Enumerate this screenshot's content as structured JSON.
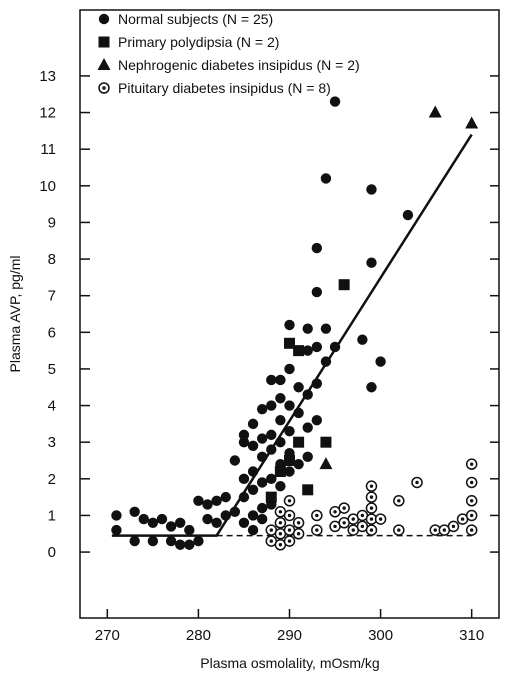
{
  "chart_data": {
    "type": "scatter",
    "title": "",
    "xlabel": "Plasma osmolality, mOsm/kg",
    "ylabel": "Plasma AVP, pg/ml",
    "xlim": [
      267,
      313
    ],
    "ylim": [
      -1.8,
      14.8
    ],
    "xticks": [
      270,
      280,
      290,
      300,
      310
    ],
    "yticks": [
      0,
      1,
      2,
      3,
      4,
      5,
      6,
      7,
      8,
      9,
      10,
      11,
      12,
      13
    ],
    "grid": false,
    "legend_position": "top-left",
    "series": [
      {
        "name": "Normal subjects (N = 25)",
        "marker": "circle",
        "points": [
          [
            271,
            1.0
          ],
          [
            271,
            0.6
          ],
          [
            273,
            1.1
          ],
          [
            273,
            0.3
          ],
          [
            274,
            0.9
          ],
          [
            275,
            0.8
          ],
          [
            275,
            0.3
          ],
          [
            276,
            0.9
          ],
          [
            277,
            0.7
          ],
          [
            277,
            0.3
          ],
          [
            278,
            0.8
          ],
          [
            278,
            0.2
          ],
          [
            279,
            0.6
          ],
          [
            279,
            0.2
          ],
          [
            280,
            0.3
          ],
          [
            280,
            1.4
          ],
          [
            281,
            1.3
          ],
          [
            281,
            0.9
          ],
          [
            282,
            1.4
          ],
          [
            282,
            0.8
          ],
          [
            283,
            1.5
          ],
          [
            283,
            1.0
          ],
          [
            284,
            2.5
          ],
          [
            284,
            1.1
          ],
          [
            285,
            3.2
          ],
          [
            285,
            3.0
          ],
          [
            285,
            2.0
          ],
          [
            285,
            1.5
          ],
          [
            285,
            0.8
          ],
          [
            286,
            3.5
          ],
          [
            286,
            2.9
          ],
          [
            286,
            2.2
          ],
          [
            286,
            1.7
          ],
          [
            286,
            1.0
          ],
          [
            286,
            0.6
          ],
          [
            287,
            3.9
          ],
          [
            287,
            3.1
          ],
          [
            287,
            2.6
          ],
          [
            287,
            1.9
          ],
          [
            287,
            1.2
          ],
          [
            287,
            0.9
          ],
          [
            288,
            4.7
          ],
          [
            288,
            4.0
          ],
          [
            288,
            3.2
          ],
          [
            288,
            2.8
          ],
          [
            288,
            2.0
          ],
          [
            288,
            1.3
          ],
          [
            289,
            4.7
          ],
          [
            289,
            4.2
          ],
          [
            289,
            3.6
          ],
          [
            289,
            3.0
          ],
          [
            289,
            2.4
          ],
          [
            289,
            1.8
          ],
          [
            290,
            6.2
          ],
          [
            290,
            5.0
          ],
          [
            290,
            4.0
          ],
          [
            290,
            3.3
          ],
          [
            290,
            2.7
          ],
          [
            290,
            2.2
          ],
          [
            291,
            5.5
          ],
          [
            291,
            4.5
          ],
          [
            291,
            3.8
          ],
          [
            291,
            3.0
          ],
          [
            291,
            2.4
          ],
          [
            292,
            6.1
          ],
          [
            292,
            5.5
          ],
          [
            292,
            4.3
          ],
          [
            292,
            3.4
          ],
          [
            292,
            2.6
          ],
          [
            293,
            8.3
          ],
          [
            293,
            7.1
          ],
          [
            293,
            5.6
          ],
          [
            293,
            4.6
          ],
          [
            293,
            3.6
          ],
          [
            294,
            10.2
          ],
          [
            294,
            6.1
          ],
          [
            294,
            5.2
          ],
          [
            295,
            12.3
          ],
          [
            295,
            5.6
          ],
          [
            298,
            5.8
          ],
          [
            299,
            9.9
          ],
          [
            299,
            7.9
          ],
          [
            299,
            4.5
          ],
          [
            300,
            5.2
          ],
          [
            303,
            9.2
          ]
        ]
      },
      {
        "name": "Primary polydipsia (N = 2)",
        "marker": "square",
        "points": [
          [
            288,
            1.5
          ],
          [
            289,
            2.2
          ],
          [
            290,
            5.7
          ],
          [
            290,
            2.5
          ],
          [
            291,
            5.5
          ],
          [
            291,
            3.0
          ],
          [
            292,
            1.7
          ],
          [
            294,
            3.0
          ],
          [
            296,
            7.3
          ]
        ]
      },
      {
        "name": "Nephrogenic diabetes insipidus (N = 2)",
        "marker": "triangle",
        "points": [
          [
            306,
            12.0
          ],
          [
            310,
            11.7
          ],
          [
            294,
            2.4
          ]
        ]
      },
      {
        "name": "Pituitary diabetes insipidus (N = 8)",
        "marker": "dotted-circle",
        "points": [
          [
            288,
            0.6
          ],
          [
            288,
            0.3
          ],
          [
            289,
            1.1
          ],
          [
            289,
            0.8
          ],
          [
            289,
            0.5
          ],
          [
            289,
            0.2
          ],
          [
            290,
            1.4
          ],
          [
            290,
            1.0
          ],
          [
            290,
            0.6
          ],
          [
            290,
            0.3
          ],
          [
            291,
            0.8
          ],
          [
            291,
            0.5
          ],
          [
            293,
            1.0
          ],
          [
            293,
            0.6
          ],
          [
            295,
            1.1
          ],
          [
            295,
            0.7
          ],
          [
            296,
            1.2
          ],
          [
            296,
            0.8
          ],
          [
            297,
            0.6
          ],
          [
            297,
            0.9
          ],
          [
            298,
            1.0
          ],
          [
            298,
            0.7
          ],
          [
            299,
            1.8
          ],
          [
            299,
            1.5
          ],
          [
            299,
            1.2
          ],
          [
            299,
            0.9
          ],
          [
            299,
            0.6
          ],
          [
            300,
            0.9
          ],
          [
            302,
            0.6
          ],
          [
            302,
            1.4
          ],
          [
            304,
            1.9
          ],
          [
            306,
            0.6
          ],
          [
            307,
            0.6
          ],
          [
            308,
            0.7
          ],
          [
            309,
            0.9
          ],
          [
            310,
            2.4
          ],
          [
            310,
            1.9
          ],
          [
            310,
            1.4
          ],
          [
            310,
            1.0
          ],
          [
            310,
            0.6
          ]
        ]
      }
    ],
    "lines": [
      {
        "style": "solid",
        "points": [
          [
            270.5,
            0.45
          ],
          [
            282,
            0.45
          ],
          [
            310,
            11.4
          ]
        ]
      },
      {
        "style": "dashed",
        "points": [
          [
            282,
            0.45
          ],
          [
            310,
            0.45
          ]
        ]
      }
    ]
  }
}
